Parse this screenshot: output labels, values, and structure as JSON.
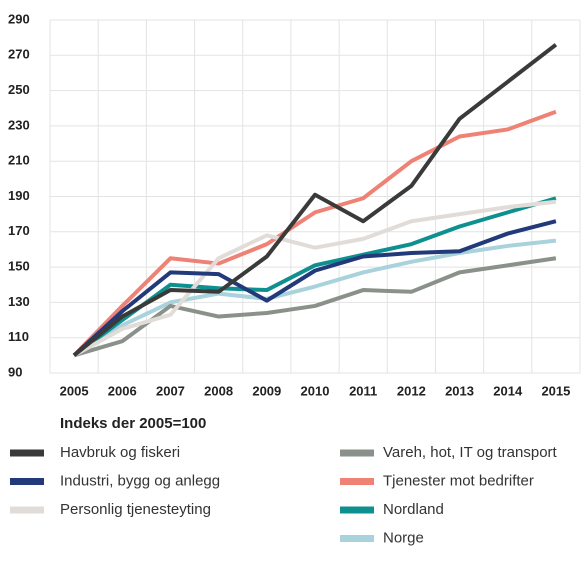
{
  "chart_data": {
    "type": "line",
    "categories": [
      "2005",
      "2006",
      "2007",
      "2008",
      "2009",
      "2010",
      "2011",
      "2012",
      "2013",
      "2014",
      "2015"
    ],
    "legend_title": "Indeks der 2005=100",
    "series": [
      {
        "name": "Havbruk og fiskeri",
        "color": "#3a3a3a",
        "values": [
          100,
          122,
          137,
          136,
          156,
          191,
          176,
          196,
          234,
          255,
          276
        ]
      },
      {
        "name": "Industri, bygg og anlegg",
        "color": "#233a7a",
        "values": [
          100,
          125,
          147,
          146,
          131,
          148,
          156,
          158,
          159,
          169,
          176
        ]
      },
      {
        "name": "Personlig tjenesteyting",
        "color": "#e2dcd8",
        "values": [
          100,
          115,
          123,
          155,
          168,
          161,
          166,
          176,
          180,
          184,
          187
        ]
      },
      {
        "name": "Vareh, hot, IT og transport",
        "color": "#8a918a",
        "values": [
          100,
          108,
          128,
          122,
          124,
          128,
          137,
          136,
          147,
          151,
          155
        ]
      },
      {
        "name": "Tjenester mot bedrifter",
        "color": "#ee8275",
        "values": [
          100,
          128,
          155,
          152,
          163,
          181,
          189,
          210,
          224,
          228,
          238
        ]
      },
      {
        "name": "Nordland",
        "color": "#0f9090",
        "values": [
          100,
          120,
          140,
          138,
          137,
          151,
          157,
          163,
          173,
          181,
          189
        ]
      },
      {
        "name": "Norge",
        "color": "#a8d2dc",
        "values": [
          100,
          117,
          130,
          135,
          132,
          139,
          147,
          153,
          158,
          162,
          165
        ]
      }
    ],
    "ylim": [
      90,
      290
    ],
    "yticks": [
      90,
      110,
      130,
      150,
      170,
      190,
      210,
      230,
      250,
      270,
      290
    ],
    "grid": true
  }
}
